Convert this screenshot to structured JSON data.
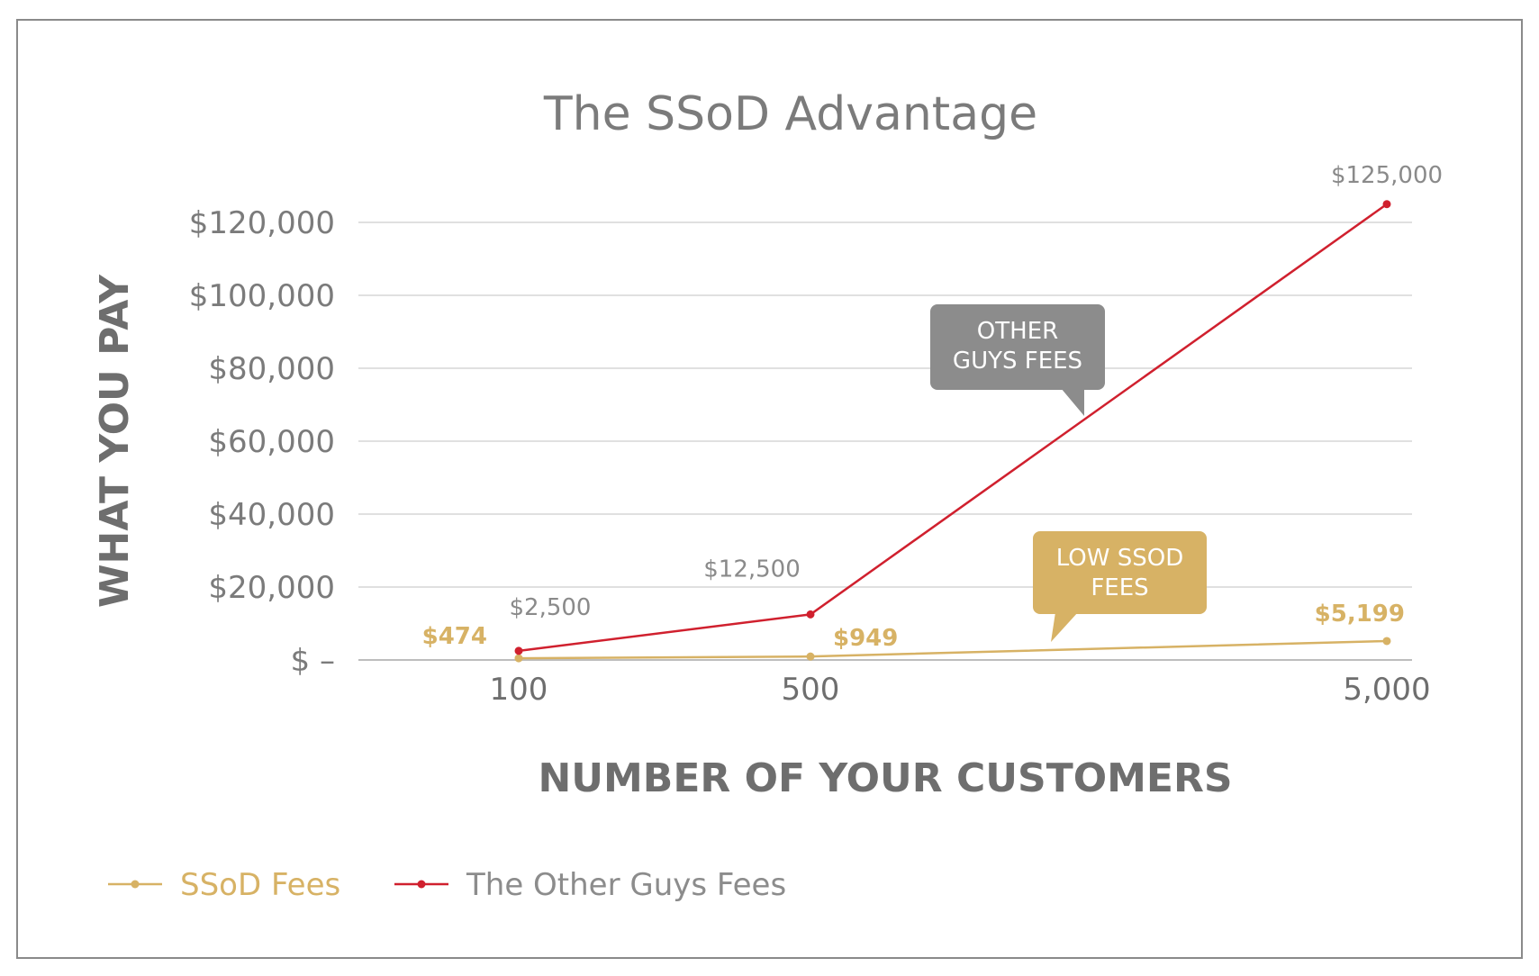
{
  "chart_data": {
    "type": "line",
    "title": "The SSoD Advantage",
    "xlabel": "NUMBER OF YOUR CUSTOMERS",
    "ylabel": "WHAT YOU PAY",
    "categories": [
      "100",
      "500",
      "5,000"
    ],
    "ylim": [
      0,
      120000
    ],
    "yticks": [
      {
        "value": 0,
        "label": "$ –"
      },
      {
        "value": 20000,
        "label": "$20,000"
      },
      {
        "value": 40000,
        "label": "$40,000"
      },
      {
        "value": 60000,
        "label": "$60,000"
      },
      {
        "value": 80000,
        "label": "$80,000"
      },
      {
        "value": 100000,
        "label": "$100,000"
      },
      {
        "value": 120000,
        "label": "$120,000"
      }
    ],
    "grid": true,
    "legend_position": "bottom-left",
    "series": [
      {
        "name": "SSoD Fees",
        "color": "#d7b265",
        "values": [
          474,
          949,
          5199
        ],
        "labels": [
          "$474",
          "$949",
          "$5,199"
        ]
      },
      {
        "name": "The Other Guys Fees",
        "color": "#d0202e",
        "values": [
          2500,
          12500,
          125000
        ],
        "labels": [
          "$2,500",
          "$12,500",
          "$125,000"
        ]
      }
    ],
    "annotations": [
      {
        "lines": [
          "OTHER",
          "GUYS FEES"
        ],
        "color": "#8c8c8c",
        "target_series": "The Other Guys Fees"
      },
      {
        "lines": [
          "LOW SSOD",
          "FEES"
        ],
        "color": "#d7b265",
        "target_series": "SSoD Fees"
      }
    ]
  }
}
